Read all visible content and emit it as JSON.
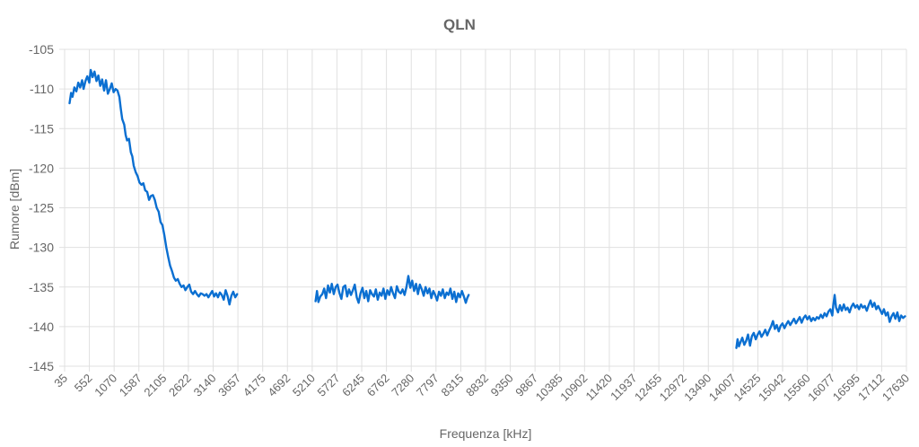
{
  "chart_data": {
    "type": "line",
    "title": "QLN",
    "xlabel": "Frequenza [kHz]",
    "ylabel": "Rumore [dBm]",
    "ylim": [
      -145,
      -105
    ],
    "yticks": [
      -105,
      -110,
      -115,
      -120,
      -125,
      -130,
      -135,
      -140,
      -145
    ],
    "xlim": [
      35,
      17630
    ],
    "xticks": [
      35,
      552,
      1070,
      1587,
      2105,
      2622,
      3140,
      3657,
      4175,
      4692,
      5210,
      5727,
      6245,
      6762,
      7280,
      7797,
      8315,
      8832,
      9350,
      9867,
      10385,
      10902,
      11420,
      11937,
      12455,
      12972,
      13490,
      14007,
      14525,
      15042,
      15560,
      16077,
      16595,
      17112,
      17630
    ],
    "grid": true,
    "legend": "none",
    "color": "#0b6fd1",
    "series": [
      {
        "values": [
          [
            138,
            -111.8
          ],
          [
            170,
            -110.5
          ],
          [
            200,
            -111.0
          ],
          [
            240,
            -109.8
          ],
          [
            280,
            -110.3
          ],
          [
            320,
            -109.2
          ],
          [
            360,
            -109.8
          ],
          [
            400,
            -108.9
          ],
          [
            430,
            -110.0
          ],
          [
            470,
            -109.0
          ],
          [
            510,
            -108.4
          ],
          [
            550,
            -109.2
          ],
          [
            580,
            -107.6
          ],
          [
            620,
            -108.5
          ],
          [
            660,
            -107.8
          ],
          [
            700,
            -109.0
          ],
          [
            740,
            -108.3
          ],
          [
            780,
            -109.6
          ],
          [
            820,
            -108.8
          ],
          [
            860,
            -110.2
          ],
          [
            900,
            -108.9
          ],
          [
            940,
            -110.6
          ],
          [
            980,
            -110.0
          ],
          [
            1020,
            -109.3
          ],
          [
            1060,
            -110.4
          ],
          [
            1100,
            -110.0
          ],
          [
            1140,
            -110.2
          ],
          [
            1180,
            -111.0
          ],
          [
            1210,
            -112.5
          ],
          [
            1240,
            -113.8
          ],
          [
            1280,
            -114.5
          ],
          [
            1310,
            -115.8
          ],
          [
            1340,
            -116.5
          ],
          [
            1380,
            -116.3
          ],
          [
            1420,
            -118.0
          ],
          [
            1450,
            -118.5
          ],
          [
            1480,
            -119.7
          ],
          [
            1520,
            -120.5
          ],
          [
            1560,
            -121.0
          ],
          [
            1600,
            -121.8
          ],
          [
            1640,
            -122.1
          ],
          [
            1680,
            -121.9
          ],
          [
            1720,
            -122.8
          ],
          [
            1760,
            -123.0
          ],
          [
            1800,
            -124.0
          ],
          [
            1840,
            -123.5
          ],
          [
            1880,
            -123.4
          ],
          [
            1920,
            -124.0
          ],
          [
            1960,
            -125.0
          ],
          [
            2000,
            -125.5
          ],
          [
            2040,
            -126.8
          ],
          [
            2080,
            -127.2
          ],
          [
            2120,
            -128.5
          ],
          [
            2160,
            -130.0
          ],
          [
            2200,
            -131.2
          ],
          [
            2240,
            -132.3
          ],
          [
            2280,
            -133.0
          ],
          [
            2320,
            -133.8
          ],
          [
            2360,
            -134.2
          ],
          [
            2400,
            -134.0
          ],
          [
            2440,
            -134.6
          ],
          [
            2480,
            -135.0
          ],
          [
            2520,
            -134.8
          ],
          [
            2560,
            -135.4
          ],
          [
            2600,
            -135.0
          ],
          [
            2640,
            -134.7
          ],
          [
            2680,
            -135.6
          ],
          [
            2720,
            -135.9
          ],
          [
            2760,
            -135.5
          ],
          [
            2800,
            -135.9
          ],
          [
            2840,
            -136.2
          ],
          [
            2880,
            -135.8
          ],
          [
            2920,
            -135.9
          ],
          [
            2960,
            -136.1
          ],
          [
            3000,
            -135.9
          ],
          [
            3040,
            -136.3
          ],
          [
            3080,
            -135.9
          ],
          [
            3120,
            -135.5
          ],
          [
            3160,
            -136.2
          ],
          [
            3200,
            -135.8
          ],
          [
            3240,
            -136.3
          ],
          [
            3280,
            -135.7
          ],
          [
            3320,
            -136.0
          ],
          [
            3360,
            -136.6
          ],
          [
            3400,
            -135.4
          ],
          [
            3440,
            -136.1
          ],
          [
            3480,
            -137.2
          ],
          [
            3520,
            -136.1
          ],
          [
            3560,
            -135.6
          ],
          [
            3600,
            -136.3
          ],
          [
            3640,
            -135.9
          ]
        ]
      },
      {
        "values": [
          [
            5280,
            -136.8
          ],
          [
            5310,
            -135.5
          ],
          [
            5340,
            -136.9
          ],
          [
            5380,
            -136.2
          ],
          [
            5420,
            -135.9
          ],
          [
            5460,
            -135.2
          ],
          [
            5500,
            -136.4
          ],
          [
            5540,
            -134.8
          ],
          [
            5580,
            -135.7
          ],
          [
            5620,
            -134.6
          ],
          [
            5660,
            -135.9
          ],
          [
            5700,
            -135.0
          ],
          [
            5740,
            -134.7
          ],
          [
            5780,
            -135.8
          ],
          [
            5820,
            -136.5
          ],
          [
            5860,
            -135.0
          ],
          [
            5900,
            -134.8
          ],
          [
            5940,
            -136.2
          ],
          [
            5980,
            -135.3
          ],
          [
            6020,
            -136.0
          ],
          [
            6060,
            -135.4
          ],
          [
            6100,
            -134.7
          ],
          [
            6140,
            -136.3
          ],
          [
            6180,
            -137.0
          ],
          [
            6220,
            -135.8
          ],
          [
            6260,
            -135.1
          ],
          [
            6300,
            -136.4
          ],
          [
            6340,
            -135.5
          ],
          [
            6380,
            -136.8
          ],
          [
            6420,
            -135.4
          ],
          [
            6460,
            -135.9
          ],
          [
            6500,
            -136.2
          ],
          [
            6540,
            -135.3
          ],
          [
            6580,
            -136.6
          ],
          [
            6620,
            -135.7
          ],
          [
            6660,
            -136.1
          ],
          [
            6700,
            -135.2
          ],
          [
            6740,
            -136.5
          ],
          [
            6780,
            -135.4
          ],
          [
            6820,
            -136.0
          ],
          [
            6860,
            -135.0
          ],
          [
            6900,
            -135.8
          ],
          [
            6940,
            -136.4
          ],
          [
            6980,
            -134.9
          ],
          [
            7020,
            -135.6
          ],
          [
            7060,
            -135.8
          ],
          [
            7100,
            -135.3
          ],
          [
            7140,
            -136.0
          ],
          [
            7180,
            -135.0
          ],
          [
            7220,
            -133.6
          ],
          [
            7260,
            -135.1
          ],
          [
            7300,
            -134.2
          ],
          [
            7340,
            -135.5
          ],
          [
            7380,
            -134.6
          ],
          [
            7420,
            -135.9
          ],
          [
            7460,
            -134.7
          ],
          [
            7500,
            -135.3
          ],
          [
            7540,
            -136.1
          ],
          [
            7580,
            -135.0
          ],
          [
            7620,
            -135.8
          ],
          [
            7660,
            -135.2
          ],
          [
            7700,
            -136.4
          ],
          [
            7740,
            -135.5
          ],
          [
            7780,
            -136.0
          ],
          [
            7820,
            -136.7
          ],
          [
            7860,
            -135.6
          ],
          [
            7900,
            -136.1
          ],
          [
            7940,
            -135.3
          ],
          [
            7980,
            -136.4
          ],
          [
            8020,
            -135.7
          ],
          [
            8060,
            -136.0
          ],
          [
            8100,
            -135.2
          ],
          [
            8140,
            -136.5
          ],
          [
            8180,
            -135.6
          ],
          [
            8220,
            -136.9
          ],
          [
            8260,
            -135.8
          ],
          [
            8300,
            -136.3
          ],
          [
            8340,
            -135.5
          ],
          [
            8380,
            -136.2
          ],
          [
            8420,
            -137.0
          ],
          [
            8450,
            -136.4
          ],
          [
            8480,
            -136.0
          ]
        ]
      },
      {
        "values": [
          [
            14075,
            -142.7
          ],
          [
            14100,
            -141.6
          ],
          [
            14130,
            -142.5
          ],
          [
            14160,
            -142.0
          ],
          [
            14200,
            -141.4
          ],
          [
            14240,
            -142.3
          ],
          [
            14280,
            -141.8
          ],
          [
            14320,
            -141.0
          ],
          [
            14360,
            -142.4
          ],
          [
            14400,
            -141.2
          ],
          [
            14440,
            -140.8
          ],
          [
            14480,
            -141.6
          ],
          [
            14520,
            -141.0
          ],
          [
            14560,
            -140.6
          ],
          [
            14600,
            -141.3
          ],
          [
            14640,
            -140.9
          ],
          [
            14680,
            -140.4
          ],
          [
            14720,
            -141.1
          ],
          [
            14760,
            -140.5
          ],
          [
            14800,
            -140.0
          ],
          [
            14840,
            -139.3
          ],
          [
            14880,
            -140.3
          ],
          [
            14920,
            -139.8
          ],
          [
            14960,
            -140.6
          ],
          [
            15000,
            -139.9
          ],
          [
            15040,
            -139.6
          ],
          [
            15080,
            -140.2
          ],
          [
            15120,
            -139.7
          ],
          [
            15160,
            -139.3
          ],
          [
            15200,
            -139.8
          ],
          [
            15240,
            -139.4
          ],
          [
            15280,
            -139.0
          ],
          [
            15320,
            -139.6
          ],
          [
            15360,
            -139.2
          ],
          [
            15400,
            -138.8
          ],
          [
            15440,
            -139.5
          ],
          [
            15480,
            -138.9
          ],
          [
            15520,
            -138.6
          ],
          [
            15560,
            -139.1
          ],
          [
            15600,
            -138.7
          ],
          [
            15640,
            -139.3
          ],
          [
            15680,
            -138.9
          ],
          [
            15720,
            -139.2
          ],
          [
            15760,
            -138.8
          ],
          [
            15800,
            -139.0
          ],
          [
            15840,
            -138.5
          ],
          [
            15880,
            -138.9
          ],
          [
            15920,
            -138.3
          ],
          [
            15960,
            -138.7
          ],
          [
            16000,
            -138.1
          ],
          [
            16040,
            -137.8
          ],
          [
            16080,
            -138.6
          ],
          [
            16100,
            -137.4
          ],
          [
            16130,
            -136.0
          ],
          [
            16160,
            -137.6
          ],
          [
            16200,
            -138.2
          ],
          [
            16240,
            -137.3
          ],
          [
            16280,
            -138.0
          ],
          [
            16320,
            -137.2
          ],
          [
            16360,
            -137.9
          ],
          [
            16400,
            -137.6
          ],
          [
            16440,
            -138.2
          ],
          [
            16480,
            -137.5
          ],
          [
            16520,
            -137.1
          ],
          [
            16560,
            -137.6
          ],
          [
            16600,
            -137.3
          ],
          [
            16640,
            -137.8
          ],
          [
            16680,
            -137.2
          ],
          [
            16720,
            -137.6
          ],
          [
            16760,
            -137.4
          ],
          [
            16800,
            -138.0
          ],
          [
            16840,
            -137.3
          ],
          [
            16880,
            -136.7
          ],
          [
            16920,
            -137.5
          ],
          [
            16960,
            -137.0
          ],
          [
            17000,
            -137.8
          ],
          [
            17040,
            -137.4
          ],
          [
            17080,
            -137.9
          ],
          [
            17120,
            -138.4
          ],
          [
            17160,
            -137.8
          ],
          [
            17200,
            -138.6
          ],
          [
            17240,
            -138.2
          ],
          [
            17280,
            -139.4
          ],
          [
            17320,
            -138.7
          ],
          [
            17360,
            -138.3
          ],
          [
            17400,
            -139.0
          ],
          [
            17440,
            -138.2
          ],
          [
            17480,
            -139.3
          ],
          [
            17520,
            -138.6
          ],
          [
            17560,
            -138.9
          ],
          [
            17600,
            -138.7
          ]
        ]
      }
    ]
  }
}
